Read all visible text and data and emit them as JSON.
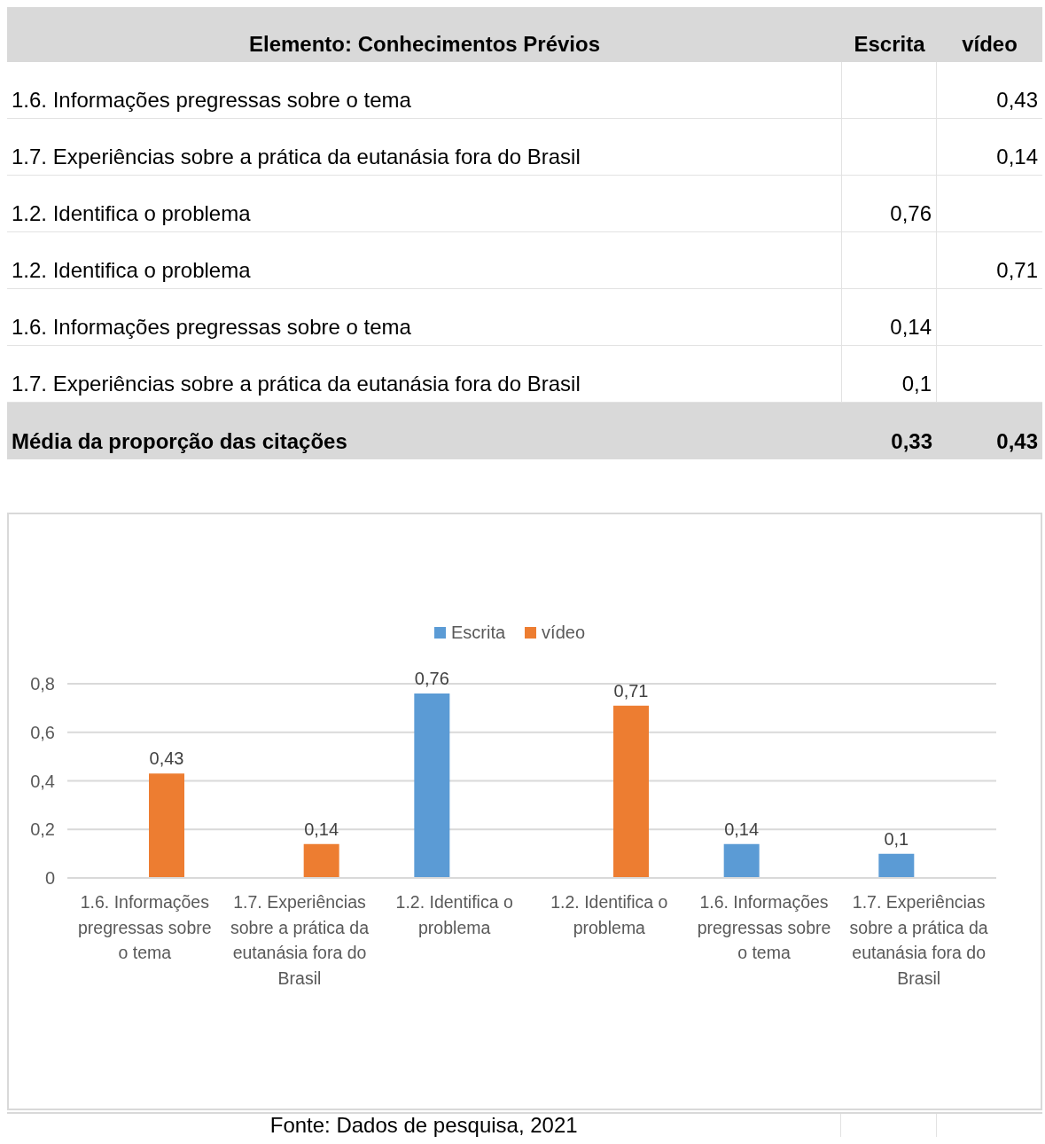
{
  "chart_data": {
    "type": "bar",
    "title": "Elemento: Conhecimentos Prévios",
    "categories": [
      "1.6. Informações pregressas sobre o tema",
      "1.7. Experiências sobre a prática da eutanásia fora do Brasil",
      "1.2. Identifica o problema",
      "1.2. Identifica o problema",
      "1.6. Informações pregressas sobre o tema",
      "1.7. Experiências sobre a prática da eutanásia fora do Brasil"
    ],
    "series": [
      {
        "name": "Escrita",
        "color": "#5b9bd5",
        "values": [
          null,
          null,
          0.76,
          null,
          0.14,
          0.1
        ],
        "value_labels": [
          null,
          null,
          "0,76",
          null,
          "0,14",
          "0,1"
        ]
      },
      {
        "name": "vídeo",
        "color": "#ed7d31",
        "values": [
          0.43,
          0.14,
          null,
          0.71,
          null,
          null
        ],
        "value_labels": [
          "0,43",
          "0,14",
          null,
          "0,71",
          null,
          null
        ]
      }
    ],
    "ylim": [
      0,
      0.8
    ],
    "yticks": [
      0,
      {
        "value": 0.2,
        "label": "0,2"
      },
      {
        "value": 0.4,
        "label": "0,4"
      },
      {
        "value": 0.6,
        "label": "0,6"
      },
      {
        "value": 0.8,
        "label": "0,8"
      }
    ],
    "grid": "y",
    "legend": "top",
    "annotations": [
      "Média da proporção das citações",
      "0,33",
      "0,43",
      "Fonte: Dados de pesquisa, 2021"
    ]
  }
}
